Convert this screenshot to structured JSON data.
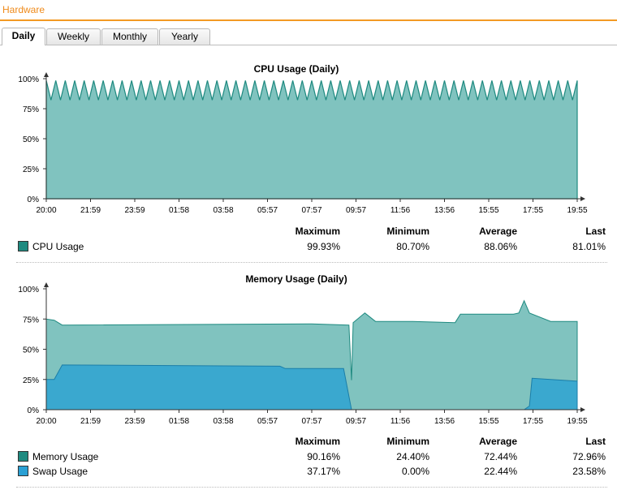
{
  "header": {
    "title": "Hardware"
  },
  "tabs": [
    {
      "label": "Daily",
      "active": true
    },
    {
      "label": "Weekly",
      "active": false
    },
    {
      "label": "Monthly",
      "active": false
    },
    {
      "label": "Yearly",
      "active": false
    }
  ],
  "stat_headers": {
    "max": "Maximum",
    "min": "Minimum",
    "avg": "Average",
    "last": "Last"
  },
  "colors": {
    "accent": "#f39a24",
    "cpu_fill": "#80c3bf",
    "cpu_line": "#1f8a80",
    "mem_fill": "#80c3bf",
    "swap_fill": "#3aa8cf"
  },
  "chart_data": [
    {
      "type": "area",
      "title": "CPU Usage (Daily)",
      "ylim": [
        0,
        100
      ],
      "yticks": [
        "0%",
        "25%",
        "50%",
        "75%",
        "100%"
      ],
      "xticks": [
        "20:00",
        "21:59",
        "23:59",
        "01:58",
        "03:58",
        "05:57",
        "07:57",
        "09:57",
        "11:56",
        "13:56",
        "15:55",
        "17:55",
        "19:55"
      ],
      "series": [
        {
          "name": "CPU Usage",
          "min": 80.7,
          "max": 99.93,
          "oscillating": true
        }
      ],
      "legend": [
        {
          "name": "CPU Usage",
          "max": "99.93%",
          "min": "80.70%",
          "avg": "88.06%",
          "last": "81.01%"
        }
      ]
    },
    {
      "type": "area",
      "title": "Memory Usage (Daily)",
      "ylim": [
        0,
        100
      ],
      "yticks": [
        "0%",
        "25%",
        "50%",
        "75%",
        "100%"
      ],
      "xticks": [
        "20:00",
        "21:59",
        "23:59",
        "01:58",
        "03:58",
        "05:57",
        "07:57",
        "09:57",
        "11:56",
        "13:56",
        "15:55",
        "17:55",
        "19:55"
      ],
      "series": [
        {
          "name": "Memory Usage",
          "x": [
            0,
            0.015,
            0.03,
            0.5,
            0.57,
            0.575,
            0.578,
            0.6,
            0.62,
            0.68,
            0.69,
            0.77,
            0.78,
            0.88,
            0.89,
            0.9,
            0.91,
            0.95,
            1
          ],
          "y": [
            75,
            74,
            70,
            71,
            70,
            24.4,
            72,
            80,
            73,
            73,
            73,
            72,
            79,
            79,
            80,
            90.16,
            80,
            73,
            73
          ]
        },
        {
          "name": "Swap Usage",
          "x": [
            0,
            0.015,
            0.03,
            0.44,
            0.45,
            0.56,
            0.575,
            0.58,
            0.9,
            0.91,
            0.915,
            1
          ],
          "y": [
            25,
            25,
            37,
            36,
            34,
            34,
            0,
            0,
            0,
            3,
            26,
            23.58
          ]
        }
      ],
      "legend": [
        {
          "name": "Memory Usage",
          "max": "90.16%",
          "min": "24.40%",
          "avg": "72.44%",
          "last": "72.96%"
        },
        {
          "name": "Swap Usage",
          "max": "37.17%",
          "min": "0.00%",
          "avg": "22.44%",
          "last": "23.58%"
        }
      ]
    }
  ]
}
